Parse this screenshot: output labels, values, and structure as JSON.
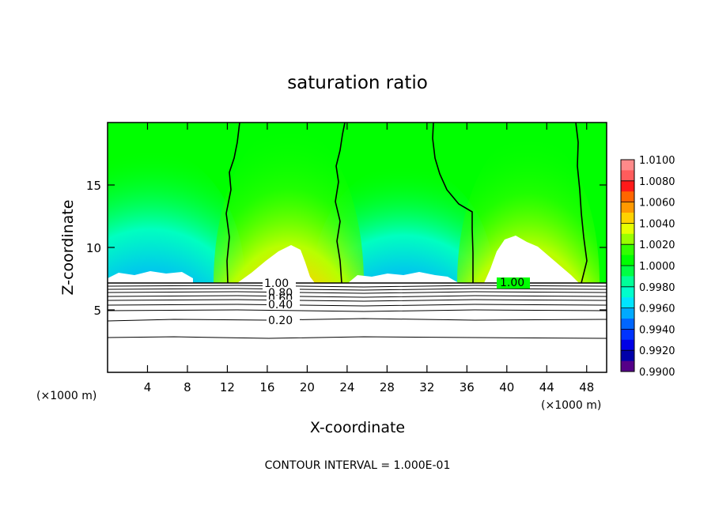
{
  "chart_data": {
    "type": "heatmap",
    "title": "saturation ratio",
    "xlabel": "X-coordinate",
    "ylabel": "Z-coordinate",
    "x_unit_left": "(×1000 m)",
    "x_unit_right": "(×1000 m)",
    "footer": "CONTOUR INTERVAL = 1.000E-01",
    "xlim": [
      0,
      50
    ],
    "ylim": [
      0,
      20
    ],
    "x_ticks": [
      4,
      8,
      12,
      16,
      20,
      24,
      28,
      32,
      36,
      40,
      44,
      48
    ],
    "x_tick_labels": [
      "4",
      "8",
      "12",
      "16",
      "20",
      "24",
      "28",
      "32",
      "36",
      "40",
      "44",
      "48"
    ],
    "y_ticks": [
      5,
      10,
      15
    ],
    "y_tick_labels": [
      "5",
      "10",
      "15"
    ],
    "colorbar": {
      "min": 0.99,
      "max": 1.01,
      "labels": [
        "1.0100",
        "1.0080",
        "1.0060",
        "1.0040",
        "1.0020",
        "1.0000",
        "0.9980",
        "0.9960",
        "0.9940",
        "0.9920",
        "0.9900"
      ],
      "colors": [
        "#ff8a8a",
        "#ff5c5c",
        "#ff1a1a",
        "#ff6600",
        "#ff9900",
        "#ffd200",
        "#e6ff00",
        "#99ff00",
        "#33ff00",
        "#00ff00",
        "#00ff44",
        "#00ff99",
        "#00ffcc",
        "#00e5ff",
        "#00aaff",
        "#0066ff",
        "#0033ff",
        "#0000e6",
        "#0000aa",
        "#550088"
      ]
    },
    "surface_z": 7.2,
    "saturated_contour_x": [
      12.2,
      23.7,
      36.9,
      47.3
    ],
    "plumes": [
      {
        "x_center": 18.2,
        "color_peak": "red"
      },
      {
        "x_center": 40.3,
        "color_peak": "red"
      }
    ],
    "contour_labels": [
      {
        "text": "1.00",
        "x": 17.0,
        "z": 7.3
      },
      {
        "text": "1.00",
        "x": 39.5,
        "z": 7.3
      },
      {
        "text": "0.80",
        "x": 17.8,
        "z": 6.7
      },
      {
        "text": "0.60",
        "x": 17.8,
        "z": 6.2
      },
      {
        "text": "0.40",
        "x": 17.8,
        "z": 5.6
      },
      {
        "text": "0.20",
        "x": 17.8,
        "z": 4.3
      }
    ],
    "subsurface_contour_z": [
      7.0,
      6.8,
      6.6,
      6.4,
      6.2,
      5.8,
      5.4,
      4.3,
      2.9
    ]
  }
}
